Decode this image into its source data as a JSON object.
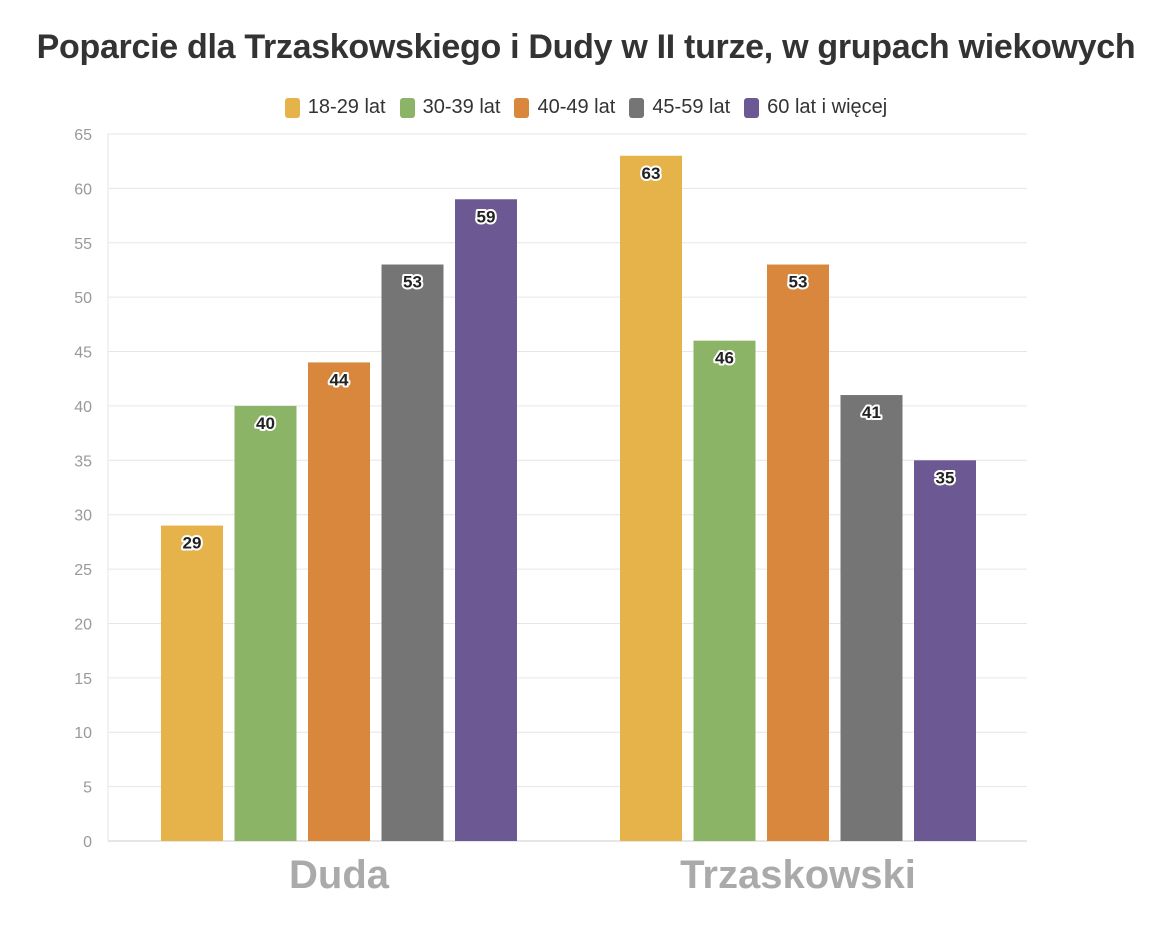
{
  "chart_data": {
    "type": "bar",
    "title": "Poparcie dla Trzaskowskiego i Dudy w II turze, w grupach wiekowych",
    "categories": [
      "Duda",
      "Trzaskowski"
    ],
    "series": [
      {
        "name": "18-29 lat",
        "color": "#e6b24a",
        "values": [
          29,
          63
        ]
      },
      {
        "name": "30-39 lat",
        "color": "#8bb466",
        "values": [
          40,
          46
        ]
      },
      {
        "name": "40-49 lat",
        "color": "#d9873d",
        "values": [
          44,
          53
        ]
      },
      {
        "name": "45-59 lat",
        "color": "#757575",
        "values": [
          53,
          41
        ]
      },
      {
        "name": "60 lat i więcej",
        "color": "#6c5994",
        "values": [
          59,
          35
        ]
      }
    ],
    "ylim": [
      0,
      65
    ],
    "yticks": [
      "0",
      "5",
      "10",
      "15",
      "20",
      "25",
      "30",
      "35",
      "40",
      "45",
      "50",
      "55",
      "60",
      "65"
    ],
    "xlabel": "",
    "ylabel": "",
    "grid": true,
    "legend_position": "top"
  }
}
